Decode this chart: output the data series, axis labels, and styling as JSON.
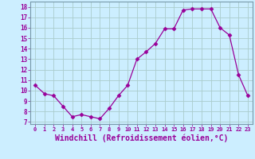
{
  "x": [
    0,
    1,
    2,
    3,
    4,
    5,
    6,
    7,
    8,
    9,
    10,
    11,
    12,
    13,
    14,
    15,
    16,
    17,
    18,
    19,
    20,
    21,
    22,
    23
  ],
  "y": [
    10.5,
    9.7,
    9.5,
    8.5,
    7.5,
    7.7,
    7.5,
    7.3,
    8.3,
    9.5,
    10.5,
    13.0,
    13.7,
    14.5,
    15.9,
    15.9,
    17.7,
    17.8,
    17.8,
    17.8,
    16.0,
    15.3,
    11.5,
    9.5
  ],
  "line_color": "#990099",
  "marker": "D",
  "marker_size": 2.5,
  "bg_color": "#cceeff",
  "grid_color": "#aacccc",
  "xlabel": "Windchill (Refroidissement éolien,°C)",
  "xlabel_fontsize": 7,
  "xtick_labels": [
    "0",
    "1",
    "2",
    "3",
    "4",
    "5",
    "6",
    "7",
    "8",
    "9",
    "10",
    "11",
    "12",
    "13",
    "14",
    "15",
    "16",
    "17",
    "18",
    "19",
    "20",
    "21",
    "22",
    "23"
  ],
  "ytick_labels": [
    "7",
    "8",
    "9",
    "10",
    "11",
    "12",
    "13",
    "14",
    "15",
    "16",
    "17",
    "18"
  ],
  "ylim": [
    6.8,
    18.5
  ],
  "xlim": [
    -0.5,
    23.5
  ]
}
